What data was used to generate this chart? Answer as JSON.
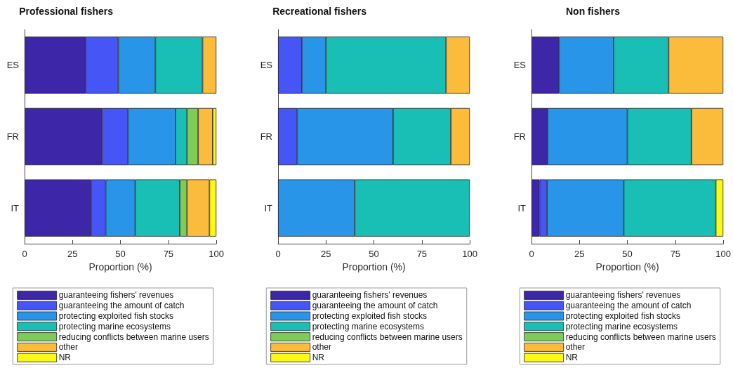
{
  "chart_data": [
    {
      "type": "bar",
      "title": "Professional fishers",
      "xlabel": "Proportion (%)",
      "orientation": "horizontal",
      "stacked": true,
      "categories": [
        "ES",
        "FR",
        "IT"
      ],
      "xlim": [
        0,
        100
      ],
      "xticks": [
        0,
        25,
        50,
        75,
        100
      ],
      "grid": false,
      "legend": "bottom",
      "series": [
        {
          "name": "guaranteeing fishers' revenues",
          "color": "#3e26a8",
          "values": [
            31.8,
            40.4,
            34.7
          ]
        },
        {
          "name": "guaranteeing the amount of catch",
          "color": "#4655f5",
          "values": [
            17.1,
            13.5,
            7.6
          ]
        },
        {
          "name": "protecting exploited fish stocks",
          "color": "#2995e8",
          "values": [
            19.3,
            24.8,
            15.4
          ]
        },
        {
          "name": "protecting marine ecosystems",
          "color": "#19bfb5",
          "values": [
            24.6,
            6.0,
            23.2
          ]
        },
        {
          "name": "reducing conflicts between marine users",
          "color": "#7ecb58",
          "values": [
            0,
            5.8,
            3.8
          ]
        },
        {
          "name": "other",
          "color": "#fbbc3c",
          "values": [
            7.2,
            7.6,
            11.7
          ]
        },
        {
          "name": "NR",
          "color": "#f9f915",
          "values": [
            0,
            1.9,
            3.6
          ]
        }
      ]
    },
    {
      "type": "bar",
      "title": "Recreational fishers",
      "xlabel": "Proportion (%)",
      "orientation": "horizontal",
      "stacked": true,
      "categories": [
        "ES",
        "FR",
        "IT"
      ],
      "xlim": [
        0,
        100
      ],
      "xticks": [
        0,
        25,
        50,
        75,
        100
      ],
      "grid": false,
      "legend": "bottom",
      "series": [
        {
          "name": "guaranteeing fishers' revenues",
          "color": "#3e26a8",
          "values": [
            0,
            0,
            0
          ]
        },
        {
          "name": "guaranteeing the amount of catch",
          "color": "#4655f5",
          "values": [
            12.4,
            10.0,
            0
          ]
        },
        {
          "name": "protecting exploited fish stocks",
          "color": "#2995e8",
          "values": [
            12.6,
            50.0,
            40.0
          ]
        },
        {
          "name": "protecting marine ecosystems",
          "color": "#19bfb5",
          "values": [
            62.6,
            30.1,
            60.0
          ]
        },
        {
          "name": "reducing conflicts between marine users",
          "color": "#7ecb58",
          "values": [
            0,
            0,
            0
          ]
        },
        {
          "name": "other",
          "color": "#fbbc3c",
          "values": [
            12.4,
            9.9,
            0
          ]
        },
        {
          "name": "NR",
          "color": "#f9f915",
          "values": [
            0,
            0,
            0
          ]
        }
      ]
    },
    {
      "type": "bar",
      "title": "Non fishers",
      "xlabel": "Proportion (%)",
      "orientation": "horizontal",
      "stacked": true,
      "categories": [
        "ES",
        "FR",
        "IT"
      ],
      "xlim": [
        0,
        100
      ],
      "xticks": [
        0,
        25,
        50,
        75,
        100
      ],
      "grid": false,
      "legend": "bottom",
      "series": [
        {
          "name": "guaranteeing fishers' revenues",
          "color": "#3e26a8",
          "values": [
            14.4,
            8.4,
            4.2
          ]
        },
        {
          "name": "guaranteeing the amount of catch",
          "color": "#4655f5",
          "values": [
            0,
            0,
            3.9
          ]
        },
        {
          "name": "protecting exploited fish stocks",
          "color": "#2995e8",
          "values": [
            28.4,
            41.6,
            40.0
          ]
        },
        {
          "name": "protecting marine ecosystems",
          "color": "#19bfb5",
          "values": [
            28.7,
            33.4,
            48.0
          ]
        },
        {
          "name": "reducing conflicts between marine users",
          "color": "#7ecb58",
          "values": [
            0,
            0,
            0
          ]
        },
        {
          "name": "other",
          "color": "#fbbc3c",
          "values": [
            28.5,
            16.6,
            0
          ]
        },
        {
          "name": "NR",
          "color": "#f9f915",
          "values": [
            0,
            0,
            3.9
          ]
        }
      ]
    }
  ]
}
